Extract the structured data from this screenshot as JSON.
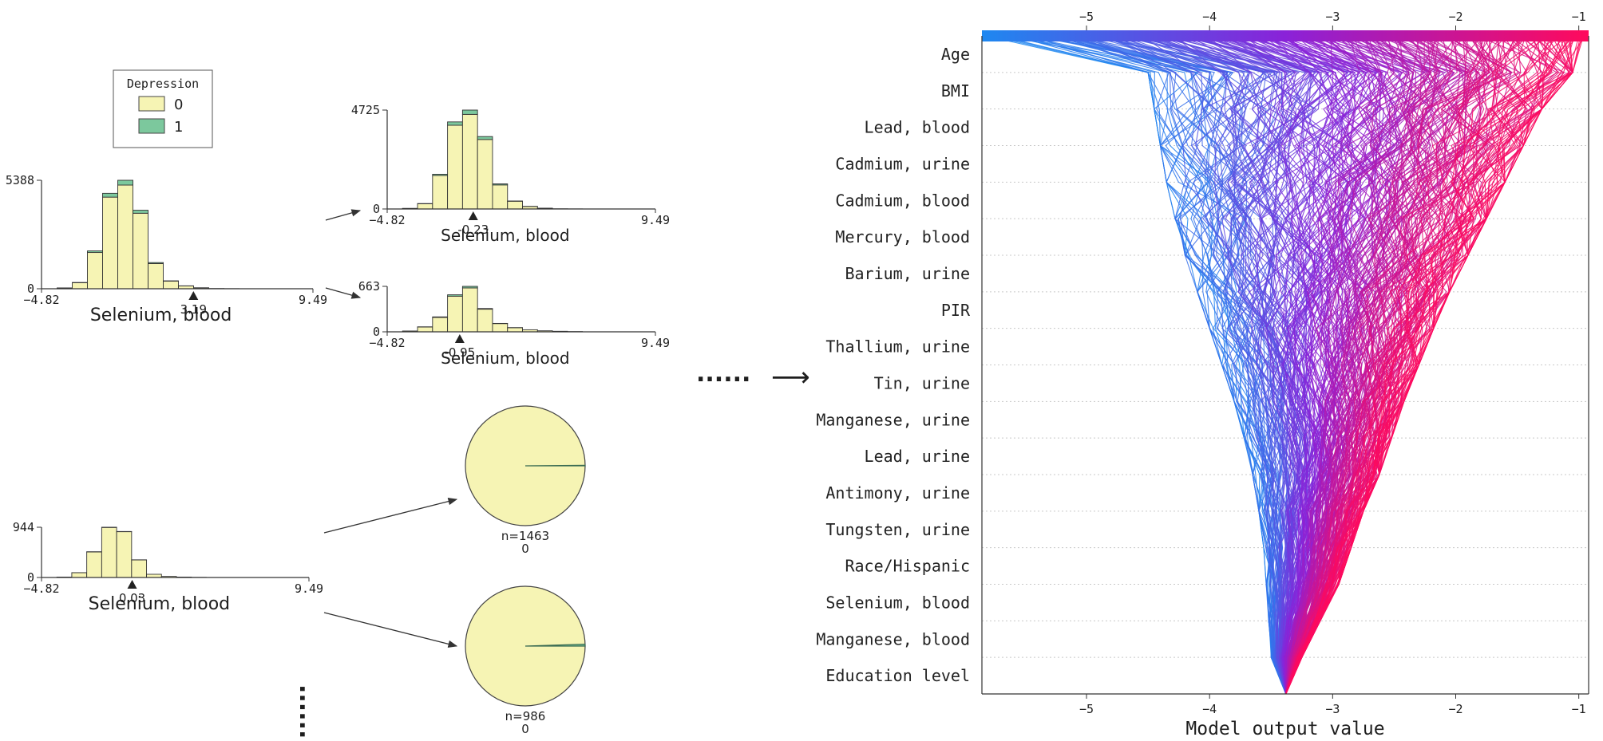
{
  "colors": {
    "bar_fill": "#f6f4b4",
    "bar_edge": "#333333",
    "class1_fill": "#7cc89d",
    "axis": "#333333",
    "grid": "#c8c8c8",
    "shap_low": "#1e88f0",
    "shap_mid": "#8a22d8",
    "shap_high": "#ff0a5c"
  },
  "legend": {
    "title": "Depression",
    "items": [
      {
        "label": "0",
        "color": "#f6f4b4"
      },
      {
        "label": "1",
        "color": "#7cc89d"
      }
    ]
  },
  "separators": {
    "horizontal": "......",
    "vertical": "......",
    "arrow": "⟶"
  },
  "chart_data": [
    {
      "type": "histogram",
      "id": "root",
      "xlabel": "Selenium, blood",
      "xlim": [
        -4.82,
        9.49
      ],
      "x_ticks": [
        "−4.82",
        "9.49"
      ],
      "y_ticks": [
        "0",
        "5388"
      ],
      "ymax": 5388,
      "split_value": "3.19",
      "split_x": 3.19,
      "bins": [
        -4.82,
        -4.0,
        -3.2,
        -2.4,
        -1.6,
        -0.8,
        0.0,
        0.8,
        1.6,
        2.4,
        3.2,
        4.0,
        4.8,
        5.6,
        6.4,
        7.2,
        8.0,
        9.49
      ],
      "class0": [
        0,
        40,
        300,
        1800,
        4550,
        5150,
        3750,
        1250,
        380,
        140,
        45,
        12,
        6,
        2,
        0,
        0,
        0
      ],
      "class1": [
        0,
        2,
        12,
        80,
        190,
        238,
        150,
        50,
        14,
        5,
        2,
        0,
        0,
        0,
        0,
        0,
        0
      ]
    },
    {
      "type": "histogram",
      "id": "left_child",
      "xlabel": "Selenium, blood",
      "xlim": [
        -4.82,
        9.49
      ],
      "x_ticks": [
        "−4.82",
        "9.49"
      ],
      "y_ticks": [
        "0",
        "4725"
      ],
      "ymax": 4725,
      "split_value": "-0.23",
      "split_x": -0.23,
      "bins": [
        -4.82,
        -4.0,
        -3.2,
        -2.4,
        -1.6,
        -0.8,
        0.0,
        0.8,
        1.6,
        2.4,
        3.2,
        4.0,
        4.8,
        5.6,
        6.4,
        7.2,
        8.0,
        9.49
      ],
      "class0": [
        0,
        25,
        250,
        1600,
        4000,
        4520,
        3320,
        1150,
        370,
        120,
        35,
        10,
        5,
        0,
        0,
        0,
        0
      ],
      "class1": [
        0,
        2,
        10,
        60,
        160,
        205,
        140,
        50,
        12,
        4,
        1,
        0,
        0,
        0,
        0,
        0,
        0
      ]
    },
    {
      "type": "histogram",
      "id": "right_child",
      "xlabel": "Selenium, blood",
      "xlim": [
        -4.82,
        9.49
      ],
      "x_ticks": [
        "−4.82",
        "9.49"
      ],
      "y_ticks": [
        "0",
        "663"
      ],
      "ymax": 663,
      "split_value": "-0.95",
      "split_x": -0.95,
      "bins": [
        -4.82,
        -4.0,
        -3.2,
        -2.4,
        -1.6,
        -0.8,
        0.0,
        0.8,
        1.6,
        2.4,
        3.2,
        4.0,
        4.8,
        5.6,
        6.4,
        7.2,
        8.0,
        9.49
      ],
      "class0": [
        0,
        12,
        70,
        210,
        520,
        640,
        330,
        120,
        60,
        30,
        15,
        8,
        4,
        0,
        0,
        0,
        0
      ],
      "class1": [
        0,
        0,
        3,
        8,
        20,
        23,
        10,
        3,
        1,
        0,
        0,
        0,
        0,
        0,
        0,
        0,
        0
      ]
    },
    {
      "type": "histogram",
      "id": "lower_node",
      "xlabel": "Selenium, blood",
      "xlim": [
        -4.82,
        9.49
      ],
      "x_ticks": [
        "−4.82",
        "9.49"
      ],
      "y_ticks": [
        "0",
        "944"
      ],
      "ymax": 944,
      "split_value": "0.03",
      "split_x": 0.03,
      "bins": [
        -4.82,
        -4.0,
        -3.2,
        -2.4,
        -1.6,
        -0.8,
        0.0,
        0.8,
        1.6,
        2.4,
        3.2,
        4.0,
        4.8,
        5.6,
        6.4,
        7.2,
        8.0,
        9.49
      ],
      "class0": [
        0,
        8,
        90,
        480,
        940,
        860,
        330,
        60,
        20,
        8,
        3,
        0,
        0,
        0,
        0,
        0,
        0
      ],
      "class1": [
        0,
        0,
        1,
        4,
        4,
        4,
        2,
        0,
        0,
        0,
        0,
        0,
        0,
        0,
        0,
        0,
        0
      ]
    },
    {
      "type": "pie",
      "id": "leaf_1463",
      "n_label": "n=1463",
      "class_label": "0",
      "slices": [
        {
          "class": "0",
          "value": 1461
        },
        {
          "class": "1",
          "value": 2
        }
      ]
    },
    {
      "type": "pie",
      "id": "leaf_986",
      "n_label": "n=986",
      "class_label": "0",
      "slices": [
        {
          "class": "0",
          "value": 981
        },
        {
          "class": "1",
          "value": 5
        }
      ]
    },
    {
      "type": "line",
      "id": "shap_decision_plot",
      "title": "",
      "xlabel": "Model output value",
      "ylabel": "",
      "xlim": [
        -5.85,
        -0.92
      ],
      "x_ticks": [
        -5,
        -4,
        -3,
        -2,
        -1
      ],
      "x_tick_labels": [
        "−5",
        "−4",
        "−3",
        "−2",
        "−1"
      ],
      "features": [
        "Age",
        "BMI",
        "Lead, blood",
        "Cadmium, urine",
        "Cadmium, blood",
        "Mercury, blood",
        "Barium, urine",
        "PIR",
        "Thallium, urine",
        "Tin, urine",
        "Manganese, urine",
        "Lead, urine",
        "Antimony, urine",
        "Tungsten, urine",
        "Race/Hispanic",
        "Selenium, blood",
        "Manganese, blood",
        "Education level"
      ],
      "base_value": -3.38,
      "output_range": [
        -5.82,
        -0.95
      ],
      "band_min": [
        -3.38,
        -3.5,
        -3.52,
        -3.54,
        -3.56,
        -3.6,
        -3.65,
        -3.72,
        -3.8,
        -3.9,
        -4.0,
        -4.1,
        -4.2,
        -4.28,
        -4.35,
        -4.4,
        -4.45,
        -4.5,
        -5.82
      ],
      "band_max": [
        -3.38,
        -3.25,
        -3.1,
        -2.95,
        -2.85,
        -2.75,
        -2.62,
        -2.52,
        -2.42,
        -2.3,
        -2.18,
        -2.05,
        -1.9,
        -1.75,
        -1.6,
        -1.45,
        -1.3,
        -1.05,
        -0.95
      ],
      "n_lines": 320,
      "colormap": "cool-warm: low output blue, mid purple, high magenta-red"
    }
  ]
}
